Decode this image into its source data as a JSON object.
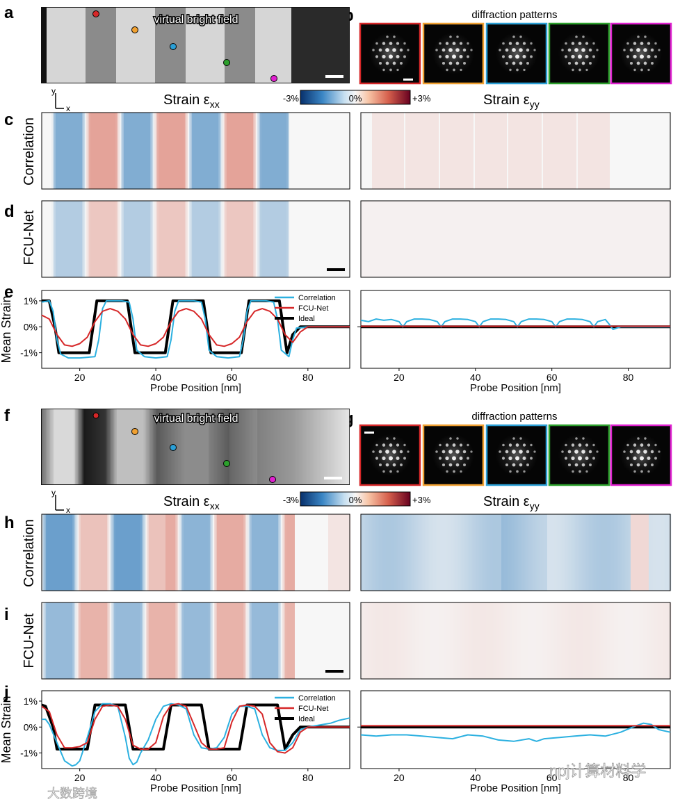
{
  "top": {
    "panel_labels": {
      "a": "a",
      "b": "b",
      "c": "c",
      "d": "d",
      "e": "e"
    },
    "vbf_title": "virtual bright field",
    "diffraction_title": "diffraction patterns",
    "strain_xx_title": "Strain ε",
    "strain_xx_sub": "xx",
    "strain_yy_title": "Strain ε",
    "strain_yy_sub": "yy",
    "row_label_correlation": "Correlation",
    "row_label_fcunet": "FCU-Net",
    "colorbar": {
      "min_label": "-3%",
      "mid_label": "0%",
      "max_label": "+3%"
    },
    "axes_y": "y",
    "axes_x": "x"
  },
  "bottom": {
    "panel_labels": {
      "f": "f",
      "g": "g",
      "h": "h",
      "i": "i",
      "j": "j"
    },
    "vbf_title": "virtual bright field",
    "diffraction_title": "diffraction patterns",
    "strain_xx_title": "Strain ε",
    "strain_xx_sub": "xx",
    "strain_yy_title": "Strain ε",
    "strain_yy_sub": "yy",
    "row_label_correlation": "Correlation",
    "row_label_fcunet": "FCU-Net",
    "colorbar": {
      "min_label": "-3%",
      "mid_label": "0%",
      "max_label": "+3%"
    },
    "axes_y": "y",
    "axes_x": "x"
  },
  "marker_colors": [
    "#d62728",
    "#f0a030",
    "#2a9fd6",
    "#2ca02c",
    "#e020d0"
  ],
  "colors": {
    "correlation": "#2bb0e0",
    "fcunet": "#d62728",
    "ideal": "#000000"
  },
  "watermark": {
    "text_right": "npj计算材料学",
    "text_left": "大数跨境"
  },
  "chart_data": [
    {
      "type": "line",
      "panel": "e-left",
      "xlabel": "Probe Position [nm]",
      "ylabel": "Mean Strain",
      "xlim": [
        10,
        91
      ],
      "ylim": [
        -1.6,
        1.4
      ],
      "xticks": [
        20,
        40,
        60,
        80
      ],
      "yticks": [
        {
          "v": 1,
          "label": "1%"
        },
        {
          "v": 0,
          "label": "0%"
        },
        {
          "v": -1,
          "label": "-1%"
        }
      ],
      "legend": "top-right",
      "series": [
        {
          "name": "Correlation",
          "key": "correlation",
          "x": [
            10,
            12,
            13,
            14,
            15,
            17,
            20,
            24,
            25,
            26,
            27,
            29,
            31,
            33,
            34,
            35,
            37,
            40,
            43,
            44,
            45,
            46,
            48,
            50,
            52,
            53,
            54,
            56,
            59,
            62,
            63,
            64,
            65,
            67,
            69,
            71,
            72,
            73,
            75,
            76,
            77,
            80,
            85,
            91
          ],
          "y": [
            0.95,
            1.0,
            0.6,
            -0.5,
            -1.05,
            -1.2,
            -1.2,
            -1.15,
            -0.5,
            0.7,
            1.0,
            1.0,
            1.0,
            0.95,
            0.3,
            -0.9,
            -1.15,
            -1.2,
            -1.15,
            -0.5,
            0.6,
            1.0,
            1.0,
            1.0,
            0.95,
            0.3,
            -0.9,
            -1.15,
            -1.2,
            -1.15,
            -0.5,
            0.6,
            1.0,
            1.0,
            1.0,
            0.95,
            0.3,
            -0.9,
            -1.15,
            -0.5,
            -0.05,
            0.0,
            0.0,
            0.0
          ]
        },
        {
          "name": "FCU-Net",
          "key": "fcunet",
          "x": [
            10,
            12,
            14,
            16,
            18,
            20,
            22,
            24,
            26,
            28,
            30,
            32,
            34,
            36,
            38,
            40,
            42,
            44,
            46,
            48,
            50,
            52,
            54,
            56,
            58,
            60,
            62,
            64,
            66,
            68,
            70,
            72,
            74,
            76,
            78,
            80,
            85,
            91
          ],
          "y": [
            0.45,
            0.3,
            -0.3,
            -0.7,
            -0.75,
            -0.65,
            -0.4,
            0.2,
            0.6,
            0.7,
            0.6,
            0.3,
            -0.3,
            -0.7,
            -0.75,
            -0.65,
            -0.4,
            0.2,
            0.6,
            0.7,
            0.6,
            0.3,
            -0.3,
            -0.7,
            -0.75,
            -0.65,
            -0.4,
            0.2,
            0.6,
            0.7,
            0.6,
            0.3,
            -0.3,
            -0.6,
            -0.2,
            0.0,
            0.0,
            0.0
          ]
        },
        {
          "name": "Ideal",
          "key": "ideal",
          "x": [
            10,
            12,
            13.5,
            14.5,
            22.5,
            23.5,
            24.5,
            32.5,
            33.5,
            34.5,
            42.5,
            43.5,
            44.5,
            52.5,
            53.5,
            54.5,
            62.5,
            63.5,
            64.5,
            72.5,
            73.5,
            74.5,
            76,
            78,
            91
          ],
          "y": [
            1.0,
            1.0,
            0,
            -1.0,
            -1.0,
            0,
            1.0,
            1.0,
            0,
            -1.0,
            -1.0,
            0,
            1.0,
            1.0,
            0,
            -1.0,
            -1.0,
            0,
            1.0,
            1.0,
            0,
            -1.0,
            -0.3,
            0.0,
            0.0
          ]
        }
      ]
    },
    {
      "type": "line",
      "panel": "e-right",
      "xlabel": "Probe Position [nm]",
      "ylabel": "",
      "xlim": [
        10,
        91
      ],
      "ylim": [
        -1.6,
        1.4
      ],
      "xticks": [
        20,
        40,
        60,
        80
      ],
      "series": [
        {
          "name": "Correlation",
          "key": "correlation",
          "x": [
            10,
            12,
            14,
            16,
            18,
            20,
            21,
            22,
            24,
            26,
            28,
            30,
            31,
            32,
            34,
            36,
            38,
            40,
            41,
            42,
            44,
            46,
            48,
            50,
            51,
            52,
            54,
            56,
            58,
            60,
            61,
            62,
            64,
            66,
            68,
            70,
            71,
            72,
            74,
            75,
            76,
            78,
            91
          ],
          "y": [
            0.25,
            0.2,
            0.3,
            0.25,
            0.28,
            0.2,
            0.0,
            0.2,
            0.3,
            0.3,
            0.28,
            0.2,
            0.0,
            0.2,
            0.3,
            0.3,
            0.28,
            0.2,
            0.0,
            0.2,
            0.3,
            0.3,
            0.28,
            0.2,
            0.0,
            0.2,
            0.3,
            0.3,
            0.28,
            0.2,
            0.0,
            0.2,
            0.3,
            0.3,
            0.28,
            0.2,
            0.0,
            0.2,
            0.28,
            0.1,
            -0.1,
            0.0,
            0.0
          ]
        },
        {
          "name": "FCU-Net",
          "key": "fcunet",
          "x": [
            10,
            91
          ],
          "y": [
            0.02,
            0.02
          ]
        },
        {
          "name": "Ideal",
          "key": "ideal",
          "x": [
            10,
            91
          ],
          "y": [
            0,
            0
          ]
        }
      ]
    },
    {
      "type": "line",
      "panel": "j-left",
      "xlabel": "Probe Position [nm]",
      "ylabel": "Mean Strain",
      "xlim": [
        10,
        91
      ],
      "ylim": [
        -1.6,
        1.4
      ],
      "xticks": [
        20,
        40,
        60,
        80
      ],
      "yticks": [
        {
          "v": 1,
          "label": "1%"
        },
        {
          "v": 0,
          "label": "0%"
        },
        {
          "v": -1,
          "label": "-1%"
        }
      ],
      "legend": "top-right",
      "series": [
        {
          "name": "Correlation",
          "key": "correlation",
          "x": [
            10,
            11,
            12,
            14,
            16,
            18,
            19,
            20,
            22,
            24,
            26,
            28,
            30,
            32,
            33,
            34,
            35,
            36,
            38,
            40,
            42,
            44,
            46,
            48,
            50,
            52,
            54,
            56,
            58,
            60,
            62,
            64,
            66,
            68,
            70,
            72,
            74,
            76,
            78,
            80,
            82,
            84,
            86,
            88,
            91
          ],
          "y": [
            0.3,
            0.3,
            0.1,
            -0.6,
            -1.3,
            -1.5,
            -1.45,
            -1.3,
            -0.4,
            0.6,
            0.9,
            0.9,
            0.8,
            -0.4,
            -1.2,
            -1.45,
            -1.35,
            -1.0,
            -0.5,
            0.3,
            0.8,
            0.9,
            0.85,
            0.7,
            -0.3,
            -0.8,
            -0.85,
            -0.8,
            -0.4,
            0.5,
            0.8,
            0.8,
            0.7,
            -0.3,
            -0.8,
            -0.9,
            -0.9,
            -0.6,
            -0.1,
            0.0,
            0.05,
            0.1,
            0.15,
            0.25,
            0.35
          ]
        },
        {
          "name": "FCU-Net",
          "key": "fcunet",
          "x": [
            10,
            12,
            14,
            16,
            18,
            20,
            22,
            24,
            26,
            28,
            30,
            32,
            34,
            36,
            38,
            40,
            42,
            44,
            46,
            48,
            50,
            52,
            54,
            56,
            58,
            60,
            62,
            64,
            66,
            68,
            70,
            72,
            74,
            76,
            78,
            80,
            85,
            91
          ],
          "y": [
            0.8,
            0.6,
            -0.3,
            -0.8,
            -0.8,
            -0.75,
            -0.6,
            0.3,
            0.8,
            0.85,
            0.8,
            0.3,
            -0.7,
            -0.85,
            -0.85,
            -0.6,
            0.4,
            0.85,
            0.9,
            0.8,
            0.1,
            -0.6,
            -0.85,
            -0.85,
            -0.8,
            0.2,
            0.8,
            0.85,
            0.8,
            0.5,
            -0.6,
            -0.95,
            -1.0,
            -0.8,
            -0.2,
            0.0,
            0.0,
            0.0
          ]
        },
        {
          "name": "Ideal",
          "key": "ideal",
          "x": [
            10,
            11,
            13,
            14,
            22,
            23,
            24,
            32,
            33,
            34,
            42,
            43,
            44,
            52,
            53,
            54,
            62,
            63,
            64,
            72,
            73,
            74,
            76,
            78,
            91
          ],
          "y": [
            0.85,
            0.8,
            0,
            -0.85,
            -0.85,
            0,
            0.85,
            0.85,
            0,
            -0.85,
            -0.85,
            0,
            0.85,
            0.85,
            0,
            -0.85,
            -0.85,
            0,
            0.85,
            0.85,
            0,
            -0.85,
            -0.3,
            0.0,
            0.0
          ]
        }
      ]
    },
    {
      "type": "line",
      "panel": "j-right",
      "xlabel": "Probe Position [nm]",
      "ylabel": "",
      "xlim": [
        10,
        91
      ],
      "ylim": [
        -1.6,
        1.4
      ],
      "xticks": [
        20,
        40,
        60,
        80
      ],
      "series": [
        {
          "name": "Correlation",
          "key": "correlation",
          "x": [
            10,
            14,
            18,
            22,
            26,
            30,
            34,
            38,
            42,
            46,
            50,
            54,
            56,
            58,
            62,
            66,
            70,
            74,
            78,
            82,
            84,
            86,
            88,
            91
          ],
          "y": [
            -0.3,
            -0.35,
            -0.3,
            -0.3,
            -0.35,
            -0.4,
            -0.45,
            -0.3,
            -0.35,
            -0.5,
            -0.55,
            -0.45,
            -0.55,
            -0.45,
            -0.4,
            -0.35,
            -0.3,
            -0.35,
            -0.2,
            0.05,
            0.15,
            0.1,
            -0.1,
            -0.2
          ]
        },
        {
          "name": "FCU-Net",
          "key": "fcunet",
          "x": [
            10,
            20,
            30,
            40,
            50,
            60,
            70,
            80,
            91
          ],
          "y": [
            0.05,
            0.05,
            0.05,
            0.05,
            0.05,
            0.05,
            0.05,
            0.05,
            0.05
          ]
        },
        {
          "name": "Ideal",
          "key": "ideal",
          "x": [
            10,
            91
          ],
          "y": [
            0,
            0
          ]
        }
      ]
    }
  ]
}
